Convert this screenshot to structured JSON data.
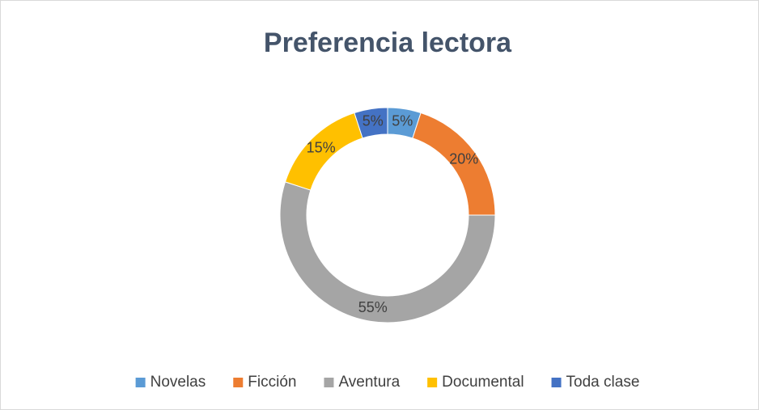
{
  "chart_data": {
    "type": "donut",
    "title": "Preferencia lectora",
    "categories": [
      "Novelas",
      "Ficción",
      "Aventura",
      "Documental",
      "Toda clase"
    ],
    "values": [
      5,
      20,
      55,
      15,
      5
    ],
    "value_labels": [
      "5%",
      "20%",
      "55%",
      "15%",
      "5%"
    ],
    "colors": [
      "#5b9bd5",
      "#ed7d31",
      "#a5a5a5",
      "#ffc000",
      "#4472c4"
    ],
    "legend": "bottom"
  }
}
